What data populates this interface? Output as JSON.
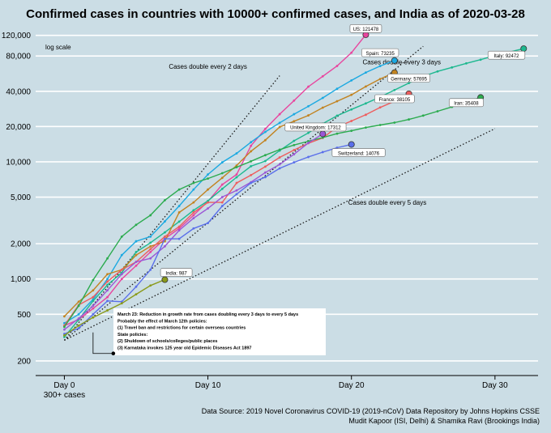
{
  "chart_data": {
    "type": "line",
    "title": "Confirmed cases in countries with 10000+ confirmed cases, and India as of 2020-03-28",
    "y_scale": "log",
    "y_scale_label": "log scale",
    "xlim": [
      -2,
      33
    ],
    "ylim": [
      150,
      140000
    ],
    "x_ticks": [
      {
        "x": 0,
        "label": "Day 0",
        "sublabel": "300+ cases"
      },
      {
        "x": 10,
        "label": "Day 10"
      },
      {
        "x": 20,
        "label": "Day 20"
      },
      {
        "x": 30,
        "label": "Day 30"
      }
    ],
    "y_ticks": [
      {
        "v": 200,
        "label": "200"
      },
      {
        "v": 500,
        "label": "500"
      },
      {
        "v": 1000,
        "label": "1,000"
      },
      {
        "v": 2000,
        "label": "2,000"
      },
      {
        "v": 5000,
        "label": "5,000"
      },
      {
        "v": 10000,
        "label": "10,000"
      },
      {
        "v": 20000,
        "label": "20,000"
      },
      {
        "v": 40000,
        "label": "40,000"
      },
      {
        "v": 80000,
        "label": "80,000"
      },
      {
        "v": 120000,
        "label": "120,000"
      }
    ],
    "grid": true,
    "series": [
      {
        "name": "US",
        "label": "US: 121478",
        "color": "#e8459e",
        "label_pos": [
          21,
          135000
        ],
        "values": [
          [
            0,
            400
          ],
          [
            1,
            450
          ],
          [
            2,
            560
          ],
          [
            3,
            700
          ],
          [
            4,
            1000
          ],
          [
            5,
            1300
          ],
          [
            6,
            1700
          ],
          [
            7,
            2200
          ],
          [
            8,
            2700
          ],
          [
            9,
            3500
          ],
          [
            10,
            4600
          ],
          [
            11,
            6400
          ],
          [
            12,
            7800
          ],
          [
            13,
            13700
          ],
          [
            14,
            19100
          ],
          [
            15,
            25500
          ],
          [
            16,
            33300
          ],
          [
            17,
            43800
          ],
          [
            18,
            53700
          ],
          [
            19,
            65800
          ],
          [
            20,
            85300
          ],
          [
            21,
            121478
          ]
        ]
      },
      {
        "name": "Spain",
        "label": "Spain: 73235",
        "color": "#1ba9e1",
        "label_pos": [
          22,
          84000
        ],
        "values": [
          [
            0,
            420
          ],
          [
            1,
            500
          ],
          [
            2,
            670
          ],
          [
            3,
            1000
          ],
          [
            4,
            1600
          ],
          [
            5,
            2100
          ],
          [
            6,
            2300
          ],
          [
            7,
            3100
          ],
          [
            8,
            4200
          ],
          [
            9,
            5800
          ],
          [
            10,
            7800
          ],
          [
            11,
            9900
          ],
          [
            12,
            11800
          ],
          [
            13,
            14700
          ],
          [
            14,
            18000
          ],
          [
            15,
            21500
          ],
          [
            16,
            25500
          ],
          [
            17,
            29800
          ],
          [
            18,
            35100
          ],
          [
            19,
            42000
          ],
          [
            20,
            49500
          ],
          [
            21,
            57800
          ],
          [
            22,
            65700
          ],
          [
            23,
            73235
          ]
        ]
      },
      {
        "name": "Italy",
        "label": "Italy: 92472",
        "color": "#1db88f",
        "label_pos": [
          30.8,
          80000
        ],
        "values": [
          [
            0,
            320
          ],
          [
            1,
            450
          ],
          [
            2,
            650
          ],
          [
            3,
            890
          ],
          [
            4,
            1130
          ],
          [
            5,
            1700
          ],
          [
            6,
            2040
          ],
          [
            7,
            2500
          ],
          [
            8,
            3090
          ],
          [
            9,
            3860
          ],
          [
            10,
            4640
          ],
          [
            11,
            5880
          ],
          [
            12,
            7380
          ],
          [
            13,
            9170
          ],
          [
            14,
            10150
          ],
          [
            15,
            12460
          ],
          [
            16,
            15110
          ],
          [
            17,
            17660
          ],
          [
            18,
            21160
          ],
          [
            19,
            24750
          ],
          [
            20,
            27980
          ],
          [
            21,
            31500
          ],
          [
            22,
            35700
          ],
          [
            23,
            41000
          ],
          [
            24,
            47000
          ],
          [
            25,
            53600
          ],
          [
            26,
            59100
          ],
          [
            27,
            63900
          ],
          [
            28,
            69200
          ],
          [
            29,
            74400
          ],
          [
            30,
            80600
          ],
          [
            31,
            86500
          ],
          [
            32,
            92472
          ]
        ]
      },
      {
        "name": "Germany",
        "label": "Germany: 57695",
        "color": "#c28320",
        "label_pos": [
          24,
          51000
        ],
        "values": [
          [
            0,
            480
          ],
          [
            1,
            640
          ],
          [
            2,
            800
          ],
          [
            3,
            1100
          ],
          [
            4,
            1200
          ],
          [
            5,
            1600
          ],
          [
            6,
            1900
          ],
          [
            7,
            2100
          ],
          [
            8,
            3700
          ],
          [
            9,
            4500
          ],
          [
            10,
            5800
          ],
          [
            11,
            7300
          ],
          [
            12,
            9300
          ],
          [
            13,
            12300
          ],
          [
            14,
            15300
          ],
          [
            15,
            19800
          ],
          [
            16,
            22200
          ],
          [
            17,
            24900
          ],
          [
            18,
            29000
          ],
          [
            19,
            32900
          ],
          [
            20,
            37300
          ],
          [
            21,
            43900
          ],
          [
            22,
            50900
          ],
          [
            23,
            57695
          ]
        ]
      },
      {
        "name": "France",
        "label": "France: 38105",
        "color": "#ee5d5d",
        "label_pos": [
          23,
          34000
        ],
        "values": [
          [
            0,
            400
          ],
          [
            1,
            600
          ],
          [
            2,
            700
          ],
          [
            3,
            950
          ],
          [
            4,
            1200
          ],
          [
            5,
            1400
          ],
          [
            6,
            1800
          ],
          [
            7,
            2300
          ],
          [
            8,
            2800
          ],
          [
            9,
            3700
          ],
          [
            10,
            4500
          ],
          [
            11,
            4500
          ],
          [
            12,
            6600
          ],
          [
            13,
            7700
          ],
          [
            14,
            9100
          ],
          [
            15,
            10900
          ],
          [
            16,
            12600
          ],
          [
            17,
            14400
          ],
          [
            18,
            16000
          ],
          [
            19,
            19800
          ],
          [
            20,
            22300
          ],
          [
            21,
            25200
          ],
          [
            22,
            29100
          ],
          [
            23,
            32900
          ],
          [
            24,
            38105
          ]
        ]
      },
      {
        "name": "Iran",
        "label": "Iran: 35408",
        "color": "#2bab4e",
        "label_pos": [
          28,
          31500
        ],
        "values": [
          [
            0,
            390
          ],
          [
            1,
            590
          ],
          [
            2,
            980
          ],
          [
            3,
            1500
          ],
          [
            4,
            2300
          ],
          [
            5,
            2900
          ],
          [
            6,
            3500
          ],
          [
            7,
            4700
          ],
          [
            8,
            5800
          ],
          [
            9,
            6600
          ],
          [
            10,
            7200
          ],
          [
            11,
            8000
          ],
          [
            12,
            9000
          ],
          [
            13,
            10100
          ],
          [
            14,
            11400
          ],
          [
            15,
            12700
          ],
          [
            16,
            13900
          ],
          [
            17,
            14990
          ],
          [
            18,
            16100
          ],
          [
            19,
            17400
          ],
          [
            20,
            18400
          ],
          [
            21,
            19600
          ],
          [
            22,
            20600
          ],
          [
            23,
            21600
          ],
          [
            24,
            23000
          ],
          [
            25,
            24800
          ],
          [
            26,
            27000
          ],
          [
            27,
            29400
          ],
          [
            28,
            32300
          ],
          [
            29,
            35408
          ]
        ]
      },
      {
        "name": "United Kingdom",
        "label": "United Kingdom: 17312",
        "color": "#9b57d6",
        "label_pos": [
          17.5,
          19500
        ],
        "values": [
          [
            0,
            370
          ],
          [
            1,
            460
          ],
          [
            2,
            590
          ],
          [
            3,
            800
          ],
          [
            4,
            1100
          ],
          [
            5,
            1400
          ],
          [
            6,
            1500
          ],
          [
            7,
            1900
          ],
          [
            8,
            2600
          ],
          [
            9,
            3300
          ],
          [
            10,
            4000
          ],
          [
            11,
            5000
          ],
          [
            12,
            5700
          ],
          [
            13,
            6700
          ],
          [
            14,
            8100
          ],
          [
            15,
            9500
          ],
          [
            16,
            11600
          ],
          [
            17,
            14500
          ],
          [
            18,
            17312
          ]
        ]
      },
      {
        "name": "Switzerland",
        "label": "Switzerland: 14076",
        "color": "#5a6fea",
        "label_pos": [
          20.5,
          11800
        ],
        "values": [
          [
            0,
            340
          ],
          [
            1,
            380
          ],
          [
            2,
            500
          ],
          [
            3,
            650
          ],
          [
            4,
            640
          ],
          [
            5,
            860
          ],
          [
            6,
            1200
          ],
          [
            7,
            2200
          ],
          [
            8,
            2200
          ],
          [
            9,
            2700
          ],
          [
            10,
            3000
          ],
          [
            11,
            4200
          ],
          [
            12,
            5300
          ],
          [
            13,
            6600
          ],
          [
            14,
            7400
          ],
          [
            15,
            8800
          ],
          [
            16,
            9900
          ],
          [
            17,
            11000
          ],
          [
            18,
            12100
          ],
          [
            19,
            13200
          ],
          [
            20,
            14076
          ]
        ]
      },
      {
        "name": "India",
        "label": "India: 987",
        "color": "#8a9a1a",
        "label_pos": [
          7.8,
          1120
        ],
        "values": [
          [
            0,
            330
          ],
          [
            1,
            400
          ],
          [
            2,
            470
          ],
          [
            3,
            540
          ],
          [
            4,
            620
          ],
          [
            5,
            740
          ],
          [
            6,
            880
          ],
          [
            7,
            987
          ]
        ]
      }
    ],
    "reference_lines": [
      {
        "label": "Cases double every 2 days",
        "label_pos": [
          10,
          62000
        ],
        "start": [
          0,
          300
        ],
        "double_days": 2,
        "x_end": 15
      },
      {
        "label": "Cases double every 3 days",
        "label_pos": [
          23.5,
          68000
        ],
        "start": [
          0,
          300
        ],
        "double_days": 3,
        "x_end": 25
      },
      {
        "label": "Cases double every 5 days",
        "label_pos": [
          22.5,
          4300
        ],
        "start": [
          0,
          300
        ],
        "double_days": 5,
        "x_end": 30
      }
    ],
    "annotation": {
      "point": [
        2,
        350
      ],
      "lines": [
        "March 23: Reduction in growth rate from cases doubling every 3 days to every 5 days",
        "Probably the effect of March 12th policies:",
        "(1) Travel ban and restrictions for certain overseas countries",
        "State policies:",
        "(2) Shuldown of schools/colleges/public places",
        "(3) Karnataka invokes 125 year old Epidemic Diseases Act 1897"
      ]
    },
    "source_lines": [
      "Data Source: 2019 Novel Coronavirus COVID-19 (2019-nCoV) Data Repository by Johns Hopkins CSSE",
      "Mudit Kapoor (ISI, Delhi) & Shamika Ravi (Brookings India)"
    ]
  }
}
